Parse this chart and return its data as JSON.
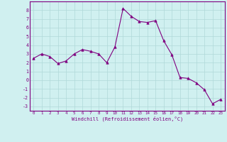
{
  "x": [
    0,
    1,
    2,
    3,
    4,
    5,
    6,
    7,
    8,
    9,
    10,
    11,
    12,
    13,
    14,
    15,
    16,
    17,
    18,
    19,
    20,
    21,
    22,
    23
  ],
  "y": [
    2.5,
    3.0,
    2.7,
    1.9,
    2.2,
    3.0,
    3.5,
    3.3,
    3.0,
    2.0,
    3.8,
    8.2,
    7.3,
    6.7,
    6.6,
    6.8,
    4.5,
    2.9,
    0.3,
    0.2,
    -0.3,
    -1.1,
    -2.7,
    -2.2
  ],
  "line_color": "#800080",
  "marker": "^",
  "marker_size": 2.5,
  "bg_color": "#d0f0f0",
  "grid_color": "#b0d8d8",
  "xlabel": "Windchill (Refroidissement éolien,°C)",
  "ylim": [
    -3.5,
    9.0
  ],
  "xlim": [
    -0.5,
    23.5
  ],
  "yticks": [
    -3,
    -2,
    -1,
    0,
    1,
    2,
    3,
    4,
    5,
    6,
    7,
    8
  ],
  "xticks": [
    0,
    1,
    2,
    3,
    4,
    5,
    6,
    7,
    8,
    9,
    10,
    11,
    12,
    13,
    14,
    15,
    16,
    17,
    18,
    19,
    20,
    21,
    22,
    23
  ],
  "spine_color": "#800080",
  "tick_color": "#800080",
  "label_color": "#800080"
}
